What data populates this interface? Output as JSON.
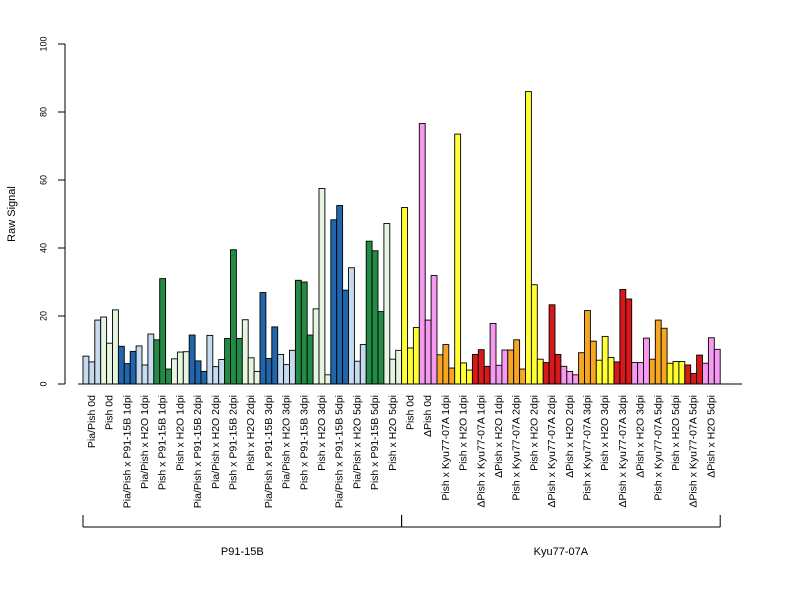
{
  "chart_data": {
    "type": "bar",
    "ylabel": "Raw Signal",
    "ylim": [
      0,
      100
    ],
    "yticks": [
      0,
      20,
      40,
      60,
      80,
      100
    ],
    "grid": false,
    "legend": "none",
    "categories": [
      "Pia/Pish 0d",
      "Pish 0d",
      "Pia/Pish x P91-15B 1dpi",
      "Pia/Pish x H2O 1dpi",
      "Pish x P91-15B 1dpi",
      "Pish x H2O 1dpi",
      "Pia/Pish x P91-15B 2dpi",
      "Pia/Pish x H2O 2dpi",
      "Pish x P91-15B 2dpi",
      "Pish x H2O 2dpi",
      "Pia/Pish x P91-15B 3dpi",
      "Pia/Pish x H2O 3dpi",
      "Pish x P91-15B 3dpi",
      "Pish x H2O 3dpi",
      "Pia/Pish x P91-15B 5dpi",
      "Pia/Pish x H2O 5dpi",
      "Pish x P91-15B 5dpi",
      "Pish x H2O 5dpi",
      "Pish 0d",
      "ΔPish 0d",
      "Pish x Kyu77-07A 1dpi",
      "Pish x H2O 1dpi",
      "ΔPish x Kyu77-07A 1dpi",
      "ΔPish x H2O 1dpi",
      "Pish x Kyu77-07A 2dpi",
      "Pish x H2O 2dpi",
      "ΔPish x Kyu77-07A 2dpi",
      "ΔPish x H2O 2dpi",
      "Pish x Kyu77-07A 3dpi",
      "Pish x H2O 3dpi",
      "ΔPish x Kyu77-07A 3dpi",
      "ΔPish x H2O 3dpi",
      "Pish x Kyu77-07A 5dpi",
      "Pish x H2O 5dpi",
      "ΔPish x Kyu77-07A 5dpi",
      "ΔPish x H2O 5dpi"
    ],
    "colors": [
      "#c6dbef",
      "#e5f5e0",
      "#2166ac",
      "#c6dbef",
      "#238b45",
      "#e5f5e0",
      "#2166ac",
      "#c6dbef",
      "#238b45",
      "#e5f5e0",
      "#2166ac",
      "#c6dbef",
      "#238b45",
      "#e5f5e0",
      "#2166ac",
      "#c6dbef",
      "#238b45",
      "#e5f5e0",
      "#ffff33",
      "#f59af0",
      "#f5a623",
      "#ffff33",
      "#d7191c",
      "#f59af0",
      "#f5a623",
      "#ffff33",
      "#d7191c",
      "#f59af0",
      "#f5a623",
      "#ffff33",
      "#d7191c",
      "#f59af0",
      "#f5a623",
      "#ffff33",
      "#d7191c",
      "#f59af0"
    ],
    "values": [
      [
        8.2,
        6.5,
        18.8
      ],
      [
        19.7,
        12.0,
        21.8
      ],
      [
        11.1,
        6.0,
        9.6
      ],
      [
        11.2,
        5.6,
        14.7
      ],
      [
        13.0,
        31.0,
        4.4
      ],
      [
        7.4,
        9.4,
        9.5
      ],
      [
        14.4,
        6.8,
        3.7
      ],
      [
        14.3,
        5.1,
        7.2
      ],
      [
        13.4,
        39.5,
        13.4
      ],
      [
        18.9,
        7.7,
        3.7
      ],
      [
        26.9,
        7.5,
        16.8
      ],
      [
        8.7,
        5.7,
        9.9
      ],
      [
        30.5,
        30.0,
        14.4
      ],
      [
        22.1,
        57.5,
        2.7
      ],
      [
        48.3,
        52.5,
        27.6
      ],
      [
        34.2,
        6.7,
        11.6
      ],
      [
        42.0,
        39.2,
        21.3
      ],
      [
        47.2,
        7.3,
        9.9
      ],
      [
        51.9,
        10.6,
        16.6
      ],
      [
        76.6,
        18.8,
        31.9
      ],
      [
        8.6,
        11.6,
        4.7
      ],
      [
        73.5,
        6.2,
        4.1
      ],
      [
        8.7,
        10.1,
        5.2
      ],
      [
        17.8,
        5.5,
        10.0
      ],
      [
        10.0,
        13.0,
        4.4
      ],
      [
        86.0,
        29.2,
        7.3
      ],
      [
        6.3,
        23.3,
        8.7
      ],
      [
        5.2,
        3.7,
        2.7
      ],
      [
        9.2,
        21.6,
        12.6
      ],
      [
        7.0,
        14.0,
        7.8
      ],
      [
        6.5,
        27.8,
        25.0
      ],
      [
        6.3,
        6.3,
        13.5
      ],
      [
        7.3,
        18.8,
        16.4
      ],
      [
        6.1,
        6.6,
        6.6
      ],
      [
        5.6,
        3.1,
        8.5
      ],
      [
        6.1,
        13.6,
        10.2
      ]
    ],
    "groups": [
      {
        "label": "P91-15B",
        "start": 0,
        "end": 17
      },
      {
        "label": "Kyu77-07A",
        "start": 18,
        "end": 35
      }
    ]
  }
}
